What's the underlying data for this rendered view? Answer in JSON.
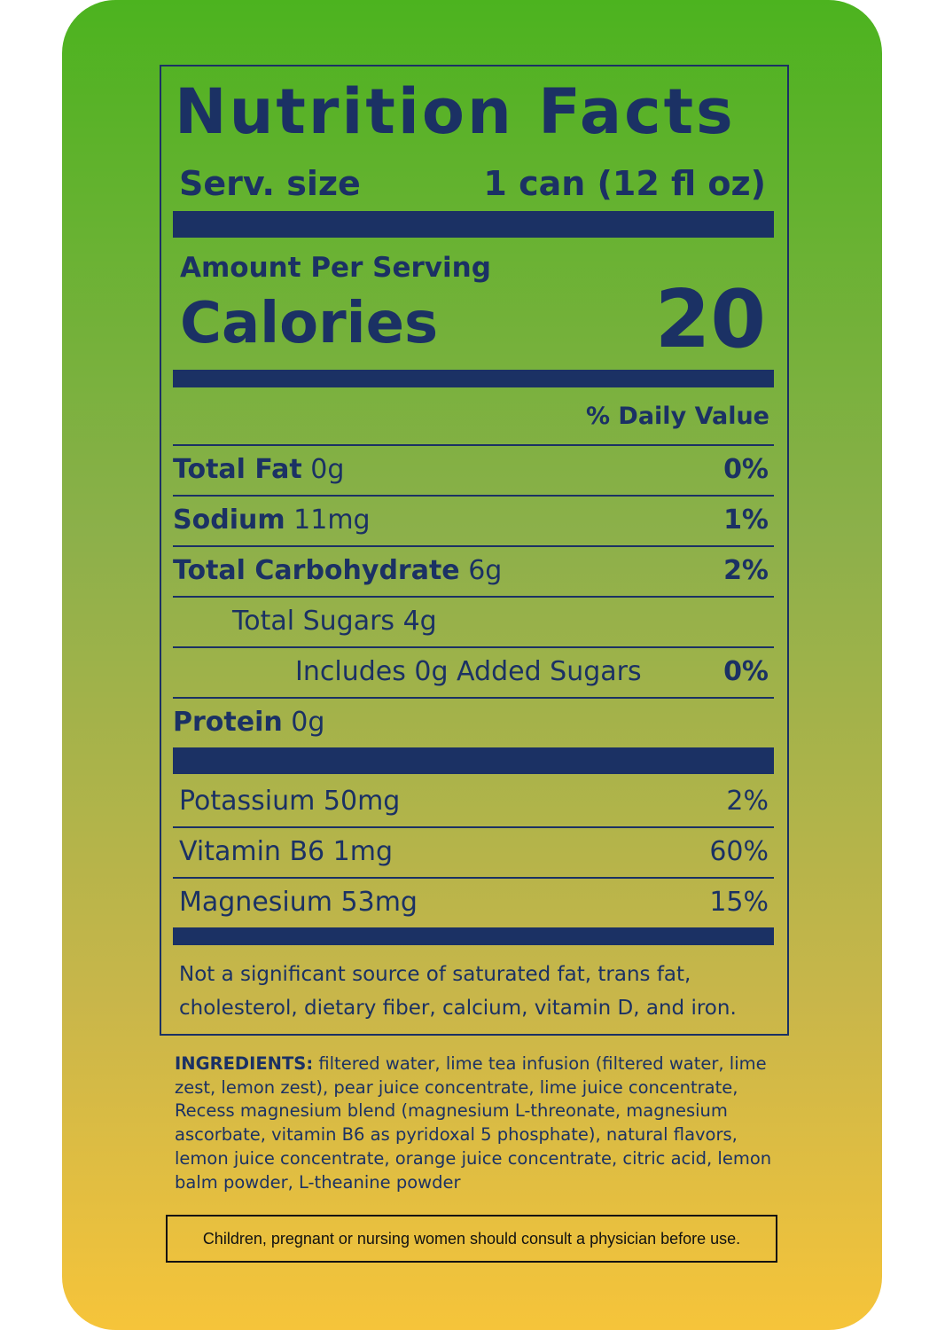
{
  "header": {
    "title": "Nutrition Facts",
    "serving_label": "Serv. size",
    "serving_value": "1 can (12 fl oz)"
  },
  "calories": {
    "amount_per_serving": "Amount Per Serving",
    "label": "Calories",
    "value": 20
  },
  "daily_value_header": "% Daily Value",
  "nutrients": [
    {
      "name": "Total Fat",
      "amount": "0g",
      "dv": "0%"
    },
    {
      "name": "Sodium",
      "amount": "11mg",
      "dv": "1%"
    },
    {
      "name": "Total Carbohydrate",
      "amount": "6g",
      "dv": "2%"
    },
    {
      "name": "Total Sugars 4g"
    },
    {
      "name": "Includes 0g Added Sugars",
      "dv": "0%"
    },
    {
      "name": "Protein",
      "amount": "0g"
    }
  ],
  "vitamins": [
    {
      "name": "Potassium 50mg",
      "dv": "2%"
    },
    {
      "name": "Vitamin B6 1mg",
      "dv": "60%"
    },
    {
      "name": "Magnesium 53mg",
      "dv": "15%"
    }
  ],
  "footnote": "Not a significant source of saturated fat, trans fat, cholesterol, dietary fiber, calcium, vitamin D, and iron.",
  "ingredients": {
    "label": "INGREDIENTS:",
    "text": "filtered water, lime tea infusion (filtered water, lime zest, lemon zest), pear juice concentrate, lime juice concentrate, Recess magnesium blend (magnesium L-threonate, magnesium ascorbate, vitamin B6 as pyridoxal 5 phosphate), natural flavors, lemon juice concentrate, orange juice concentrate, citric acid, lemon balm powder, L-theanine powder"
  },
  "warning": "Children, pregnant or nursing women should consult a physician before use."
}
